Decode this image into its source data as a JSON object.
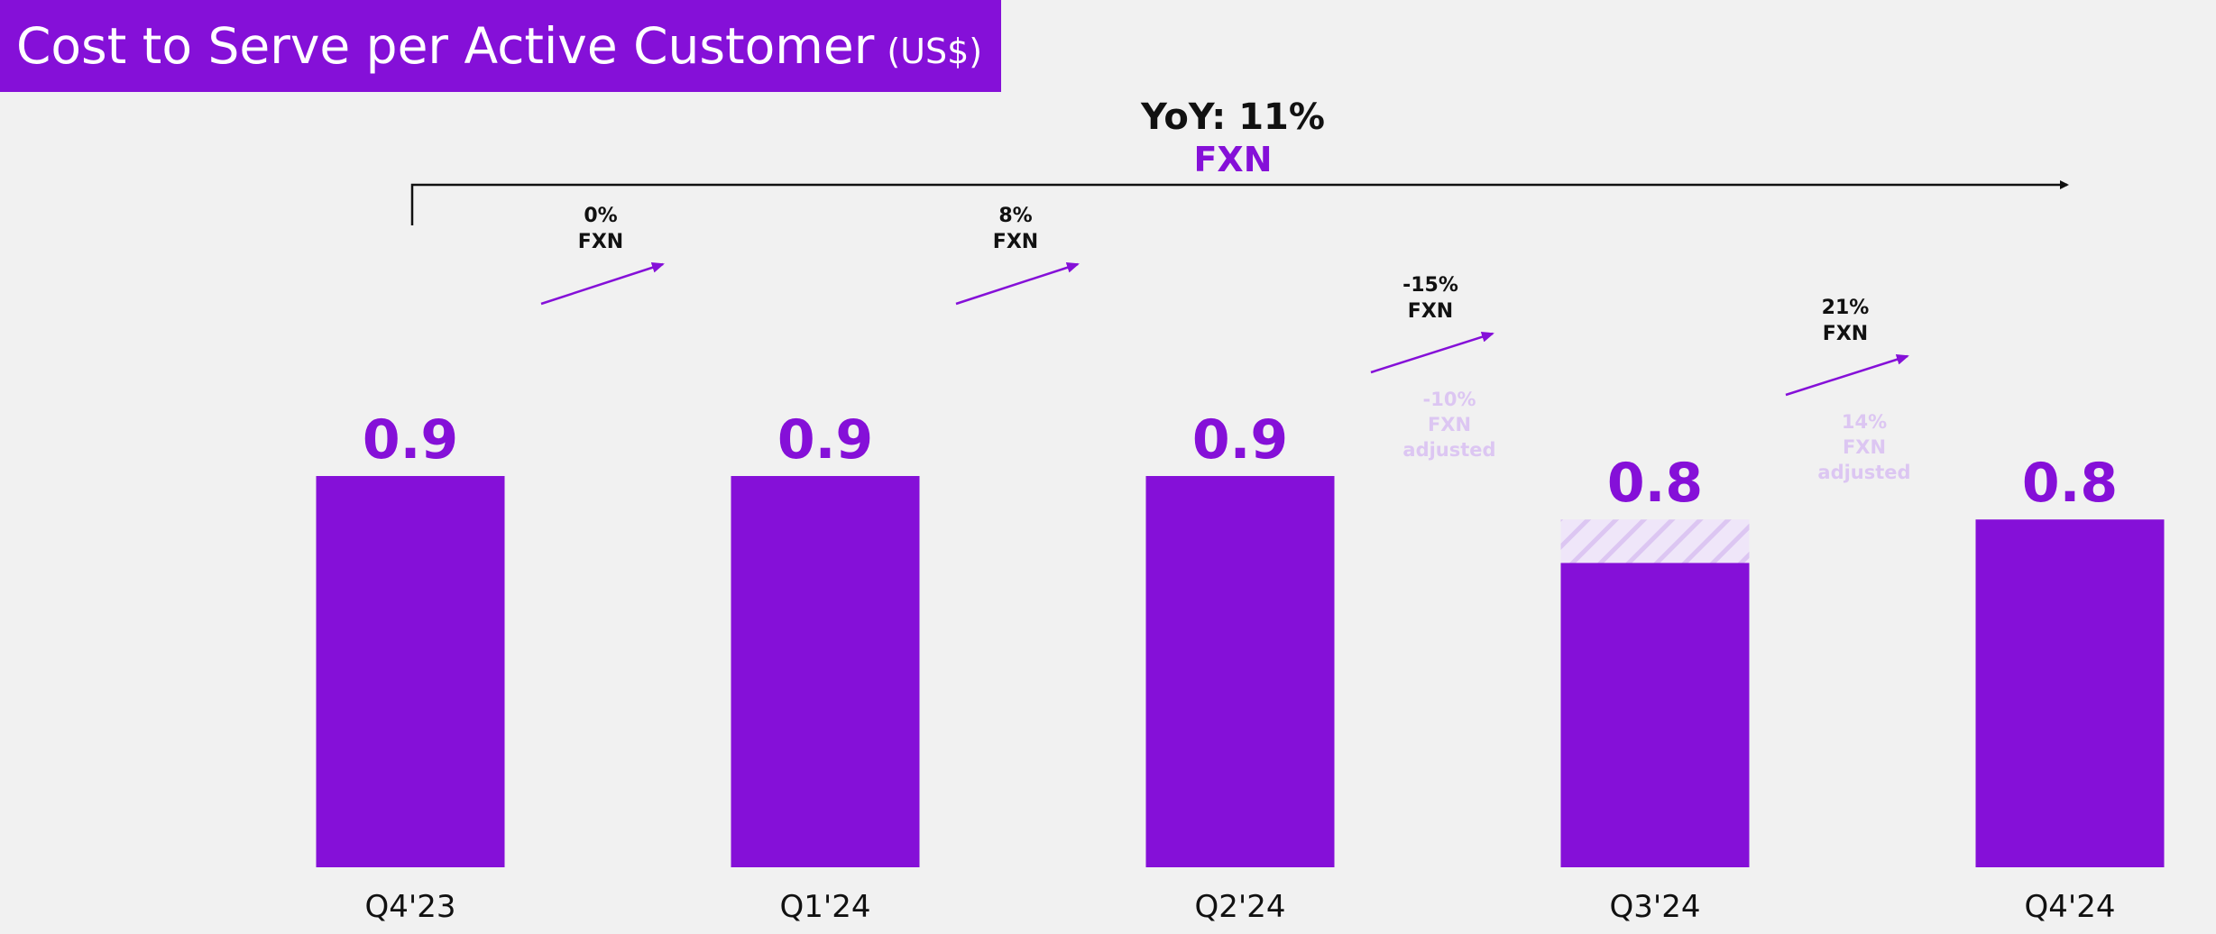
{
  "header": {
    "title": "Cost to Serve per Active Customer",
    "unit": "(US$)"
  },
  "colors": {
    "primary": "#8510d8",
    "light": "#dcc6f2",
    "text_dark": "#111111",
    "background": "#f1f1f1"
  },
  "chart_data": {
    "type": "bar",
    "title": "Cost to Serve per Active Customer (US$)",
    "categories": [
      "Q4'23",
      "Q1'24",
      "Q2'24",
      "Q3'24",
      "Q4'24"
    ],
    "values": [
      0.9,
      0.9,
      0.9,
      0.8,
      0.8
    ],
    "value_labels": [
      "0.9",
      "0.9",
      "0.9",
      "0.8",
      "0.8"
    ],
    "hatched_segment": {
      "category": "Q3'24",
      "value": 0.8,
      "solid_value": 0.7
    },
    "xlabel": "",
    "ylabel": "",
    "grid": false,
    "yoy": {
      "label": "YoY: 11%",
      "sublabel": "FXN"
    },
    "changes": [
      {
        "from": "Q4'23",
        "to": "Q1'24",
        "value": "0%",
        "label": "FXN"
      },
      {
        "from": "Q1'24",
        "to": "Q2'24",
        "value": "8%",
        "label": "FXN"
      },
      {
        "from": "Q2'24",
        "to": "Q3'24",
        "value": "-15%",
        "label": "FXN",
        "adjusted_value": "-10%",
        "adjusted_label_1": "FXN",
        "adjusted_label_2": "adjusted"
      },
      {
        "from": "Q3'24",
        "to": "Q4'24",
        "value": "21%",
        "label": "FXN",
        "adjusted_value": "14%",
        "adjusted_label_1": "FXN",
        "adjusted_label_2": "adjusted"
      }
    ]
  }
}
